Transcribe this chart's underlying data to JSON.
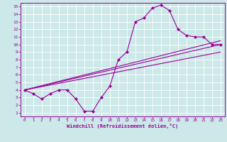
{
  "background_color": "#cce8e8",
  "grid_color": "#ffffff",
  "line_color": "#990099",
  "marker_color": "#990099",
  "xlabel": "Windchill (Refroidissement éolien,°C)",
  "xlim": [
    -0.5,
    23.5
  ],
  "ylim": [
    0.5,
    15.5
  ],
  "xticks": [
    0,
    1,
    2,
    3,
    4,
    5,
    6,
    7,
    8,
    9,
    10,
    11,
    12,
    13,
    14,
    15,
    16,
    17,
    18,
    19,
    20,
    21,
    22,
    23
  ],
  "yticks": [
    1,
    2,
    3,
    4,
    5,
    6,
    7,
    8,
    9,
    10,
    11,
    12,
    13,
    14,
    15
  ],
  "curves": [
    {
      "x": [
        0,
        1,
        2,
        3,
        4,
        5,
        6,
        7,
        8,
        9,
        10,
        11,
        12,
        13,
        14,
        15,
        16,
        17,
        18,
        19,
        20,
        21,
        22,
        23
      ],
      "y": [
        4,
        3.5,
        2.8,
        3.5,
        4,
        4,
        2.8,
        1.2,
        1.2,
        3,
        4.5,
        8,
        9,
        13,
        13.5,
        14.8,
        15.2,
        14.5,
        12,
        11.2,
        11,
        11,
        10,
        10
      ]
    },
    {
      "x": [
        0,
        23
      ],
      "y": [
        4,
        10
      ]
    },
    {
      "x": [
        0,
        23
      ],
      "y": [
        4,
        9
      ]
    },
    {
      "x": [
        0,
        23
      ],
      "y": [
        4,
        10.5
      ]
    }
  ]
}
